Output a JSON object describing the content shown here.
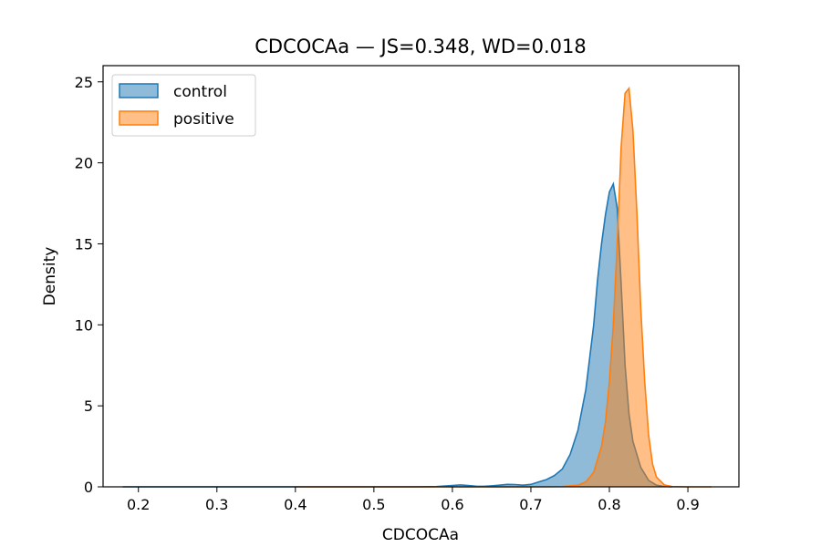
{
  "chart_data": {
    "type": "area",
    "title": "CDCOCAa — JS=0.348, WD=0.018",
    "xlabel": "CDCOCAa",
    "ylabel": "Density",
    "xlim": [
      0.155,
      0.965
    ],
    "ylim": [
      0,
      26
    ],
    "xticks": [
      0.2,
      0.3,
      0.4,
      0.5,
      0.6,
      0.7,
      0.8,
      0.9
    ],
    "xtick_labels": [
      "0.2",
      "0.3",
      "0.4",
      "0.5",
      "0.6",
      "0.7",
      "0.8",
      "0.9"
    ],
    "yticks": [
      0,
      5,
      10,
      15,
      20,
      25
    ],
    "ytick_labels": [
      "0",
      "5",
      "10",
      "15",
      "20",
      "25"
    ],
    "grid": false,
    "legend_position": "top-left",
    "series": [
      {
        "name": "control",
        "color": "#1f77b4",
        "fill_alpha": 0.5,
        "x": [
          0.18,
          0.3,
          0.4,
          0.5,
          0.55,
          0.58,
          0.6,
          0.61,
          0.62,
          0.63,
          0.64,
          0.65,
          0.66,
          0.67,
          0.68,
          0.69,
          0.7,
          0.71,
          0.72,
          0.73,
          0.74,
          0.75,
          0.76,
          0.77,
          0.78,
          0.785,
          0.79,
          0.795,
          0.8,
          0.805,
          0.81,
          0.815,
          0.82,
          0.825,
          0.83,
          0.84,
          0.85,
          0.86,
          0.87,
          0.88
        ],
        "y": [
          0.0,
          0.0,
          0.0,
          0.0,
          0.0,
          0.02,
          0.08,
          0.12,
          0.08,
          0.04,
          0.03,
          0.06,
          0.1,
          0.15,
          0.14,
          0.1,
          0.15,
          0.3,
          0.45,
          0.7,
          1.1,
          2.0,
          3.5,
          6.0,
          10.0,
          12.8,
          15.0,
          16.8,
          18.2,
          18.7,
          17.2,
          12.5,
          7.5,
          4.5,
          2.8,
          1.2,
          0.4,
          0.1,
          0.02,
          0.0
        ]
      },
      {
        "name": "positive",
        "color": "#ff7f0e",
        "fill_alpha": 0.5,
        "x": [
          0.4,
          0.5,
          0.6,
          0.7,
          0.74,
          0.76,
          0.77,
          0.78,
          0.79,
          0.795,
          0.8,
          0.805,
          0.81,
          0.815,
          0.82,
          0.825,
          0.83,
          0.835,
          0.84,
          0.845,
          0.85,
          0.855,
          0.86,
          0.87,
          0.88,
          0.9,
          0.93
        ],
        "y": [
          0.0,
          0.0,
          0.0,
          0.0,
          0.02,
          0.1,
          0.3,
          0.9,
          2.5,
          4.0,
          6.5,
          10.0,
          15.0,
          21.0,
          24.3,
          24.6,
          22.0,
          17.0,
          11.0,
          6.5,
          3.2,
          1.4,
          0.6,
          0.12,
          0.02,
          0.0,
          0.0
        ]
      }
    ]
  }
}
